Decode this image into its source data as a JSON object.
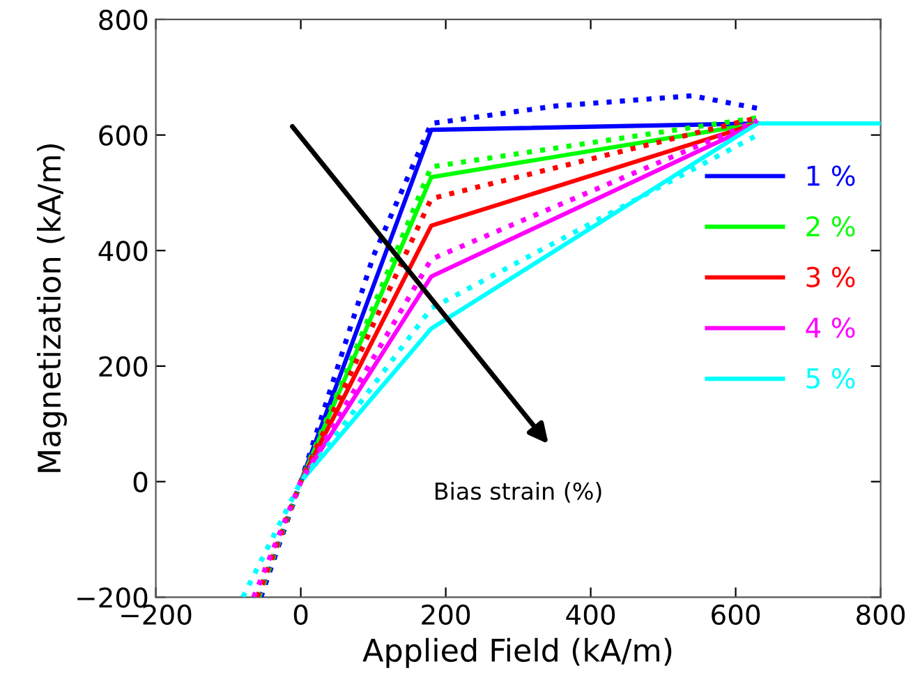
{
  "chart_data": {
    "type": "line",
    "xlabel": "Applied Field (kA/m)",
    "ylabel": "Magnetization (kA/m)",
    "xlim": [
      -200,
      800
    ],
    "ylim": [
      -200,
      800
    ],
    "xticks": [
      {
        "value": -200,
        "label": "−200"
      },
      0,
      200,
      400,
      600,
      800
    ],
    "yticks": [
      {
        "value": -200,
        "label": "−200"
      },
      0,
      200,
      400,
      600,
      800
    ],
    "grid": false,
    "legend": "right",
    "line_style": "solid",
    "marker": "none",
    "annotations": [
      "Bias strain (%)"
    ],
    "series": [
      {
        "name": "1 %",
        "color": "#0000ff",
        "x": [
          0,
          180,
          630
        ],
        "values": [
          0,
          609,
          620
        ]
      },
      {
        "name": "2 %",
        "color": "#00ff00",
        "x": [
          0,
          180,
          630
        ],
        "values": [
          0,
          527,
          620
        ]
      },
      {
        "name": "3 %",
        "color": "#ff0000",
        "x": [
          0,
          180,
          630
        ],
        "values": [
          0,
          443,
          620
        ]
      },
      {
        "name": "4 %",
        "color": "#ff00ff",
        "x": [
          0,
          180,
          630
        ],
        "values": [
          0,
          355,
          620
        ]
      },
      {
        "name": "5 %",
        "color": "#00ffff",
        "x": [
          0,
          180,
          630,
          800
        ],
        "values": [
          0,
          265,
          620,
          620
        ]
      },
      {
        "color": "#0000ff",
        "line_style": "dotted",
        "x": [
          -55,
          0,
          100,
          180,
          350,
          540,
          635
        ],
        "values": [
          -200,
          0,
          390,
          620,
          650,
          668,
          645
        ]
      },
      {
        "color": "#00ff00",
        "line_style": "dotted",
        "x": [
          -58,
          0,
          180,
          630
        ],
        "values": [
          -200,
          0,
          545,
          630
        ]
      },
      {
        "color": "#ff0000",
        "line_style": "dotted",
        "x": [
          -60,
          0,
          180,
          630
        ],
        "values": [
          -200,
          0,
          490,
          630
        ]
      },
      {
        "color": "#ff00ff",
        "line_style": "dotted",
        "x": [
          -65,
          0,
          180,
          630
        ],
        "values": [
          -200,
          0,
          385,
          625
        ]
      },
      {
        "color": "#00ffff",
        "line_style": "dotted",
        "x": [
          -80,
          0,
          180,
          630
        ],
        "values": [
          -200,
          0,
          300,
          600
        ]
      }
    ]
  }
}
